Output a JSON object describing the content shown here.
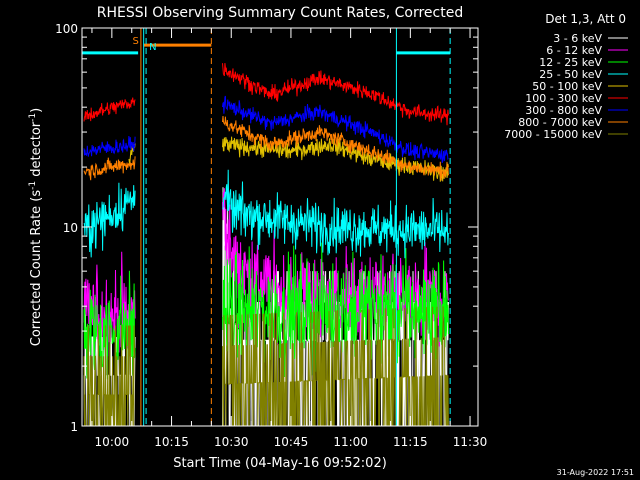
{
  "chart_data": {
    "type": "line",
    "title": "RHESSI Observing Summary Count Rates, Corrected",
    "ylabel_main": "Corrected Count Rate (s",
    "ylabel_sup1": "-1",
    "ylabel_mid": " detector",
    "ylabel_sup2": "-1",
    "ylabel_end": ")",
    "xlabel": "Start Time (04-May-16 09:52:02)",
    "footer": "31-Aug-2022 17:51",
    "legend_title": "Det 1,3, Att 0",
    "y_scale": "log",
    "ylim": [
      1,
      100
    ],
    "y_ticks": [
      {
        "value": 1,
        "label": "1"
      },
      {
        "value": 10,
        "label": "10"
      },
      {
        "value": 100,
        "label": "100"
      }
    ],
    "x_range_min": [
      -7.5,
      92
    ],
    "x_ticks": [
      {
        "min": 0,
        "label": "10:00"
      },
      {
        "min": 15,
        "label": "10:15"
      },
      {
        "min": 30,
        "label": "10:30"
      },
      {
        "min": 45,
        "label": "10:45"
      },
      {
        "min": 60,
        "label": "11:00"
      },
      {
        "min": 75,
        "label": "11:15"
      },
      {
        "min": 90,
        "label": "11:30"
      }
    ],
    "flags": {
      "saa_label": "S",
      "night_label": "N",
      "saa_color": "#ff8000",
      "night_color": "#00ffff",
      "night_bars": [
        [
          -7.5,
          6.6
        ],
        [
          71.5,
          85
        ]
      ],
      "saa_bar": [
        8,
        25
      ],
      "night_lines_solid": [
        8,
        71.5
      ],
      "night_lines_dashed": [
        8.6,
        85
      ],
      "saa_lines_solid": [
        7.3
      ],
      "saa_lines_dashed": [
        25
      ],
      "bar_level": 75
    },
    "gaps": [
      [
        5.9,
        27.8
      ],
      [
        84.6,
        92
      ]
    ],
    "series": [
      {
        "name": "3 - 6 keV",
        "color": "#ffffff",
        "segments": [
          [
            [
              -7,
              2
            ],
            [
              5.9,
              2
            ]
          ],
          [
            [
              27.8,
              12
            ],
            [
              30,
              4
            ],
            [
              33,
              3
            ],
            [
              84.6,
              3
            ]
          ]
        ],
        "noise": 0.55
      },
      {
        "name": "6 - 12 keV",
        "color": "#ff00ff",
        "segments": [
          [
            [
              -7,
              3.6
            ],
            [
              5.9,
              3.6
            ]
          ],
          [
            [
              27.8,
              14
            ],
            [
              30,
              7
            ],
            [
              35,
              5.5
            ],
            [
              45,
              4.6
            ],
            [
              84.6,
              4.2
            ]
          ]
        ],
        "noise": 0.25
      },
      {
        "name": "12 - 25 keV",
        "color": "#00ff00",
        "segments": [
          [
            [
              -7,
              3
            ],
            [
              5.9,
              3
            ]
          ],
          [
            [
              27.8,
              3.8
            ],
            [
              84.6,
              3.8
            ]
          ]
        ],
        "noise": 0.3
      },
      {
        "name": "25 - 50 keV",
        "color": "#00ffff",
        "segments": [
          [
            [
              -7,
              9.5
            ],
            [
              -2,
              11
            ],
            [
              5.9,
              14
            ]
          ],
          [
            [
              27.8,
              16
            ],
            [
              30,
              12
            ],
            [
              40,
              11
            ],
            [
              55,
              10
            ],
            [
              84.6,
              9.5
            ]
          ]
        ],
        "noise": 0.14
      },
      {
        "name": "50 - 100 keV",
        "color": "#e0c000",
        "segments": [
          [
            [
              4.3,
              21
            ],
            [
              5.9,
              26
            ]
          ],
          [
            [
              27.8,
              26
            ],
            [
              45,
              24
            ],
            [
              55,
              26
            ],
            [
              65,
              22
            ],
            [
              84.6,
              18.5
            ]
          ]
        ],
        "noise": 0.05
      },
      {
        "name": "100 - 300 keV",
        "color": "#ff0000",
        "segments": [
          [
            [
              -7,
              36
            ],
            [
              5.9,
              43
            ]
          ],
          [
            [
              27.8,
              63
            ],
            [
              40,
              46
            ],
            [
              52,
              56
            ],
            [
              65,
              47
            ],
            [
              75,
              38
            ],
            [
              84.6,
              36
            ]
          ]
        ],
        "noise": 0.045
      },
      {
        "name": "300 - 800 keV",
        "color": "#0000ff",
        "segments": [
          [
            [
              -7,
              24
            ],
            [
              5.9,
              26
            ]
          ],
          [
            [
              27.8,
              42
            ],
            [
              40,
              33
            ],
            [
              52,
              38
            ],
            [
              65,
              30
            ],
            [
              75,
              24
            ],
            [
              84.6,
              23
            ]
          ]
        ],
        "noise": 0.045
      },
      {
        "name": "800 - 7000 keV",
        "color": "#ff8000",
        "segments": [
          [
            [
              -7,
              19
            ],
            [
              5.9,
              21
            ]
          ],
          [
            [
              27.8,
              34
            ],
            [
              40,
              26
            ],
            [
              52,
              30
            ],
            [
              65,
              24
            ],
            [
              75,
              20
            ],
            [
              84.6,
              19
            ]
          ]
        ],
        "noise": 0.045
      },
      {
        "name": "7000 - 15000 keV",
        "color": "#808000",
        "segments": [
          [
            [
              -7,
              1.6
            ],
            [
              5.9,
              1.6
            ]
          ],
          [
            [
              27.8,
              1.8
            ],
            [
              84.6,
              2
            ]
          ]
        ],
        "noise": 0.6
      }
    ]
  }
}
